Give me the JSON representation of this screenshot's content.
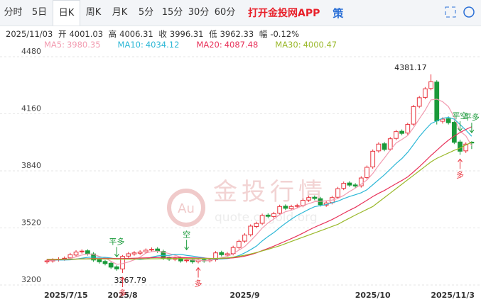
{
  "tabs": [
    "分时",
    "5日",
    "日K",
    "周K",
    "月K",
    "5分",
    "15分",
    "30分",
    "60分"
  ],
  "app_link": "打开金投网APP",
  "strategy": "策",
  "watermark": {
    "brand": "金投行情",
    "site": "quote.cngold.org",
    "logo": "Au"
  },
  "chart_data": {
    "type": "candlestick",
    "header": {
      "date": "2025/11/03",
      "open_label": "开",
      "high_label": "高",
      "close_label": "收",
      "low_label": "低",
      "change_label": "幅",
      "change": {
        "value": -0.12,
        "label": "-0.12%"
      }
    },
    "categories": [
      "2025/7/15",
      null,
      null,
      null,
      null,
      null,
      null,
      null,
      null,
      null,
      null,
      null,
      null,
      "2025/8",
      null,
      null,
      null,
      null,
      null,
      null,
      null,
      null,
      null,
      null,
      null,
      null,
      null,
      null,
      null,
      null,
      null,
      null,
      null,
      null,
      "2025/9",
      null,
      null,
      null,
      null,
      null,
      null,
      null,
      null,
      null,
      null,
      null,
      null,
      null,
      null,
      null,
      null,
      null,
      null,
      null,
      null,
      null,
      "2025/10",
      null,
      null,
      null,
      null,
      null,
      null,
      null,
      null,
      null,
      null,
      null,
      null,
      null,
      null,
      null,
      null,
      "2025/11/3"
    ],
    "open": [
      3330,
      3335,
      3342,
      3346,
      3352,
      3368,
      3386,
      3392,
      3374,
      3342,
      3332,
      3322,
      3302,
      3290,
      3362,
      3374,
      3378,
      3386,
      3396,
      3402,
      3388,
      3352,
      3344,
      3352,
      3336,
      3342,
      3331,
      3342,
      3336,
      3342,
      3382,
      3368,
      3376,
      3410,
      3446,
      3482,
      3528,
      3546,
      3592,
      3584,
      3602,
      3642,
      3628,
      3641,
      3646,
      3676,
      3692,
      3684,
      3648,
      3662,
      3692,
      3742,
      3772,
      3761,
      3756,
      3802,
      3862,
      3952,
      3992,
      3962,
      4022,
      4062,
      4052,
      4102,
      4202,
      4252,
      4302,
      4338,
      4118,
      4132,
      4112,
      4002,
      3952,
      4001.03
    ],
    "high": [
      3345,
      3350,
      3355,
      3360,
      3380,
      3395,
      3400,
      3400,
      3384,
      3350,
      3340,
      3330,
      3310,
      3368,
      3385,
      3390,
      3395,
      3405,
      3410,
      3412,
      3398,
      3360,
      3360,
      3360,
      3350,
      3350,
      3350,
      3350,
      3350,
      3390,
      3392,
      3385,
      3420,
      3455,
      3490,
      3540,
      3555,
      3600,
      3602,
      3610,
      3650,
      3652,
      3650,
      3655,
      3685,
      3700,
      3702,
      3694,
      3670,
      3700,
      3750,
      3780,
      3782,
      3771,
      3810,
      3870,
      3960,
      4000,
      4002,
      4030,
      4070,
      4072,
      4110,
      4210,
      4260,
      4310,
      4381.17,
      4348,
      4140,
      4145,
      4122,
      4015,
      4000,
      4006.31
    ],
    "low": [
      3320,
      3325,
      3332,
      3336,
      3342,
      3358,
      3376,
      3365,
      3330,
      3320,
      3310,
      3290,
      3280,
      3267.79,
      3352,
      3364,
      3368,
      3376,
      3386,
      3380,
      3340,
      3335,
      3334,
      3325,
      3326,
      3320,
      3321,
      3325,
      3326,
      3332,
      3360,
      3358,
      3366,
      3400,
      3436,
      3472,
      3518,
      3536,
      3575,
      3574,
      3592,
      3620,
      3618,
      3631,
      3636,
      3666,
      3675,
      3640,
      3638,
      3652,
      3682,
      3732,
      3750,
      3745,
      3746,
      3792,
      3852,
      3942,
      3950,
      3952,
      4012,
      4040,
      4042,
      4092,
      4192,
      4242,
      4292,
      4100,
      4105,
      4100,
      3990,
      3930,
      3940,
      3962.33
    ],
    "close": [
      3335,
      3340,
      3345,
      3350,
      3370,
      3385,
      3390,
      3375,
      3340,
      3330,
      3320,
      3300,
      3290,
      3360,
      3375,
      3380,
      3385,
      3395,
      3400,
      3390,
      3350,
      3345,
      3350,
      3335,
      3340,
      3330,
      3340,
      3335,
      3340,
      3380,
      3370,
      3375,
      3410,
      3445,
      3480,
      3530,
      3545,
      3590,
      3585,
      3600,
      3640,
      3630,
      3640,
      3645,
      3675,
      3690,
      3685,
      3650,
      3660,
      3690,
      3740,
      3770,
      3760,
      3755,
      3800,
      3860,
      3950,
      3990,
      3960,
      4020,
      4060,
      4050,
      4100,
      4200,
      4250,
      4300,
      4340,
      4120,
      4130,
      4110,
      4000,
      3950,
      3990,
      3996.31
    ],
    "up_color": "#e8323c",
    "down_color": "#1a9a3a",
    "series": [
      {
        "name": "MA5:",
        "color": "#f29bb0",
        "values": [
          3338,
          3338,
          3340,
          3342,
          3348,
          3358,
          3368,
          3374,
          3372,
          3360,
          3351,
          3333,
          3316,
          3320,
          3329,
          3341,
          3356,
          3379,
          3387,
          3390,
          3384,
          3376,
          3367,
          3356,
          3344,
          3340,
          3339,
          3336,
          3337,
          3345,
          3353,
          3360,
          3375,
          3396,
          3416,
          3448,
          3482,
          3519,
          3548,
          3570,
          3594,
          3611,
          3619,
          3631,
          3646,
          3656,
          3667,
          3669,
          3672,
          3676,
          3685,
          3702,
          3724,
          3743,
          3765,
          3789,
          3825,
          3871,
          3912,
          3956,
          3996,
          4016,
          4038,
          4082,
          4132,
          4180,
          4238,
          4242,
          4228,
          4200,
          4140,
          4062,
          4036,
          3980.35
        ]
      },
      {
        "name": "MA10:",
        "color": "#2cb7d6",
        "values": [
          3342,
          3341,
          3340,
          3340,
          3341,
          3345,
          3350,
          3355,
          3357,
          3355,
          3355,
          3351,
          3345,
          3346,
          3346,
          3346,
          3343,
          3346,
          3356,
          3363,
          3366,
          3366,
          3372,
          3372,
          3366,
          3362,
          3357,
          3352,
          3346,
          3345,
          3346,
          3348,
          3355,
          3365,
          3380,
          3398,
          3418,
          3447,
          3472,
          3494,
          3521,
          3546,
          3569,
          3590,
          3607,
          3624,
          3639,
          3645,
          3651,
          3661,
          3670,
          3684,
          3696,
          3706,
          3717,
          3734,
          3762,
          3790,
          3818,
          3849,
          3881,
          3909,
          3944,
          3987,
          4032,
          4070,
          4105,
          4120,
          4135,
          4140,
          4130,
          4100,
          4068,
          4034.12
        ]
      },
      {
        "name": "MA20:",
        "color": "#e8325a",
        "values": [
          3340,
          3341,
          3342,
          3343,
          3344,
          3345,
          3346,
          3347,
          3348,
          3348,
          3349,
          3349,
          3348,
          3348,
          3349,
          3350,
          3351,
          3352,
          3353,
          3354,
          3355,
          3355,
          3355,
          3354,
          3353,
          3352,
          3351,
          3350,
          3349,
          3348,
          3349,
          3350,
          3352,
          3356,
          3362,
          3370,
          3380,
          3393,
          3405,
          3418,
          3432,
          3446,
          3460,
          3475,
          3491,
          3508,
          3524,
          3538,
          3552,
          3567,
          3584,
          3602,
          3619,
          3635,
          3655,
          3675,
          3696,
          3714,
          3730,
          3749,
          3768,
          3786,
          3806,
          3834,
          3863,
          3894,
          3926,
          3955,
          3985,
          4012,
          4035,
          4055,
          4072,
          4087.48
        ]
      },
      {
        "name": "MA30:",
        "color": "#9ab82a",
        "values": [
          3344,
          3344,
          3344,
          3345,
          3345,
          3345,
          3346,
          3346,
          3346,
          3346,
          3346,
          3346,
          3345,
          3345,
          3345,
          3345,
          3346,
          3346,
          3347,
          3347,
          3348,
          3348,
          3348,
          3348,
          3348,
          3348,
          3348,
          3348,
          3348,
          3349,
          3350,
          3352,
          3356,
          3361,
          3367,
          3374,
          3382,
          3391,
          3400,
          3410,
          3420,
          3432,
          3444,
          3456,
          3468,
          3480,
          3492,
          3504,
          3516,
          3528,
          3540,
          3558,
          3575,
          3592,
          3608,
          3624,
          3640,
          3665,
          3690,
          3715,
          3740,
          3765,
          3790,
          3815,
          3840,
          3865,
          3890,
          3910,
          3925,
          3940,
          3955,
          3968,
          3985,
          4000.47
        ]
      }
    ],
    "signals": [
      {
        "index": 12,
        "label": "平多",
        "color": "#1a9a3a",
        "dir": "down"
      },
      {
        "index": 13,
        "label": "多",
        "color": "#e8323c",
        "dir": "up"
      },
      {
        "index": 24,
        "label": "空",
        "color": "#1a9a3a",
        "dir": "down"
      },
      {
        "index": 26,
        "label": "多",
        "color": "#e8323c",
        "dir": "up"
      },
      {
        "index": 71,
        "label": "平空",
        "color": "#1a9a3a",
        "dir": "down"
      },
      {
        "index": 73,
        "label": "平多",
        "color": "#1a9a3a",
        "dir": "down"
      },
      {
        "index": 71,
        "label": "多",
        "color": "#e8323c",
        "dir": "up"
      }
    ],
    "ylim": [
      3200,
      4480
    ],
    "yticks": [
      3200,
      3520,
      3840,
      4160,
      4480
    ],
    "grid": true
  }
}
